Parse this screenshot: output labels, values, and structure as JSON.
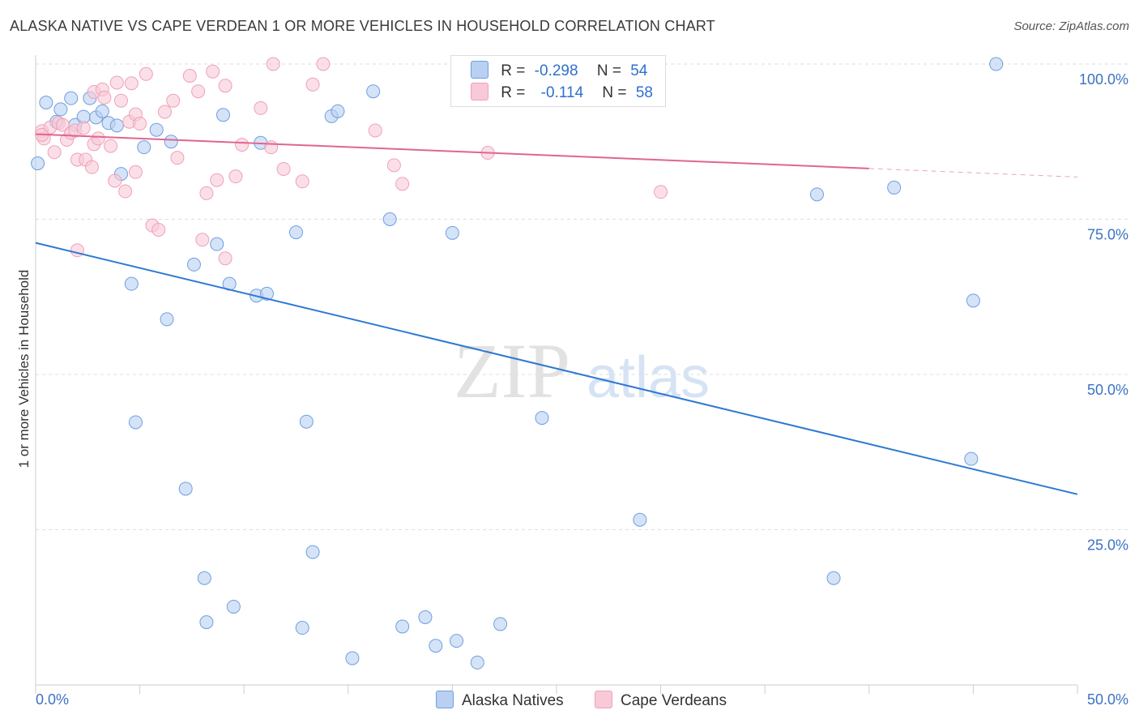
{
  "title": "ALASKA NATIVE VS CAPE VERDEAN 1 OR MORE VEHICLES IN HOUSEHOLD CORRELATION CHART",
  "source": "Source: ZipAtlas.com",
  "watermark": {
    "zip": "ZIP",
    "atlas": "atlas"
  },
  "legend": {
    "rows": [
      {
        "r_label": "R =",
        "r_value": "-0.298",
        "n_label": "N =",
        "n_value": "54"
      },
      {
        "r_label": "R =",
        "r_value": "-0.114",
        "n_label": "N =",
        "n_value": "58"
      }
    ]
  },
  "chart_data": {
    "type": "scatter",
    "title": "ALASKA NATIVE VS CAPE VERDEAN 1 OR MORE VEHICLES IN HOUSEHOLD CORRELATION CHART",
    "xlabel": "",
    "ylabel": "1 or more Vehicles in Household",
    "xlim": [
      0,
      50
    ],
    "ylim": [
      0,
      100
    ],
    "x_tick_labels": [
      {
        "value": 0,
        "label": "0.0%"
      },
      {
        "value": 50,
        "label": "50.0%"
      }
    ],
    "y_tick_labels": [
      {
        "value": 100,
        "label": "100.0%"
      },
      {
        "value": 75,
        "label": "75.0%"
      },
      {
        "value": 50,
        "label": "50.0%"
      },
      {
        "value": 25,
        "label": "25.0%"
      }
    ],
    "series": [
      {
        "name": "Alaska Natives",
        "color": "#6f9fe0",
        "fill": "#b9d0f2",
        "line_color": "#2f78d4",
        "trend": {
          "x": [
            0,
            50
          ],
          "y": [
            71.2,
            30.7
          ],
          "dashed_from": null
        },
        "points": [
          [
            0.5,
            93.8
          ],
          [
            1.2,
            92.7
          ],
          [
            1.7,
            94.5
          ],
          [
            1.0,
            90.7
          ],
          [
            1.9,
            90.2
          ],
          [
            2.3,
            91.5
          ],
          [
            2.6,
            94.5
          ],
          [
            2.9,
            91.4
          ],
          [
            3.2,
            92.4
          ],
          [
            3.5,
            90.5
          ],
          [
            3.9,
            90.1
          ],
          [
            4.1,
            82.3
          ],
          [
            5.2,
            86.6
          ],
          [
            5.8,
            89.4
          ],
          [
            6.5,
            87.5
          ],
          [
            9.0,
            91.8
          ],
          [
            10.8,
            87.3
          ],
          [
            14.2,
            91.6
          ],
          [
            14.5,
            92.4
          ],
          [
            16.2,
            95.6
          ],
          [
            12.5,
            72.9
          ],
          [
            17.0,
            75.0
          ],
          [
            20.0,
            72.8
          ],
          [
            8.7,
            71.0
          ],
          [
            7.6,
            67.7
          ],
          [
            9.3,
            64.6
          ],
          [
            10.6,
            62.7
          ],
          [
            11.1,
            63.0
          ],
          [
            4.6,
            64.6
          ],
          [
            6.3,
            58.9
          ],
          [
            4.8,
            42.3
          ],
          [
            13.0,
            42.4
          ],
          [
            24.3,
            43.0
          ],
          [
            7.2,
            31.6
          ],
          [
            29.0,
            26.6
          ],
          [
            13.3,
            21.4
          ],
          [
            8.1,
            17.2
          ],
          [
            38.3,
            17.2
          ],
          [
            8.2,
            10.1
          ],
          [
            9.5,
            12.6
          ],
          [
            12.8,
            9.2
          ],
          [
            17.6,
            9.4
          ],
          [
            18.7,
            10.9
          ],
          [
            22.3,
            9.8
          ],
          [
            19.2,
            6.3
          ],
          [
            20.2,
            7.1
          ],
          [
            21.2,
            3.6
          ],
          [
            15.2,
            4.3
          ],
          [
            37.5,
            79.0
          ],
          [
            41.2,
            80.1
          ],
          [
            44.9,
            36.4
          ],
          [
            45.0,
            61.9
          ],
          [
            46.1,
            100.0
          ],
          [
            0.1,
            84.0
          ]
        ]
      },
      {
        "name": "Cape Verdeans",
        "color": "#f0a0ba",
        "fill": "#f8c9d7",
        "line_color": "#e0668f",
        "trend": {
          "x": [
            0,
            50
          ],
          "y": [
            88.7,
            81.8
          ],
          "dashed_from": 40
        },
        "points": [
          [
            0.3,
            89.2
          ],
          [
            0.4,
            88.0
          ],
          [
            0.7,
            89.8
          ],
          [
            0.9,
            85.8
          ],
          [
            1.1,
            90.5
          ],
          [
            1.3,
            90.2
          ],
          [
            1.5,
            87.8
          ],
          [
            1.7,
            88.9
          ],
          [
            1.9,
            89.3
          ],
          [
            2.0,
            84.6
          ],
          [
            2.3,
            89.7
          ],
          [
            2.4,
            84.6
          ],
          [
            2.7,
            83.4
          ],
          [
            2.8,
            95.5
          ],
          [
            2.8,
            87.1
          ],
          [
            3.2,
            95.9
          ],
          [
            3.3,
            94.6
          ],
          [
            3.6,
            86.8
          ],
          [
            3.8,
            81.2
          ],
          [
            3.9,
            97.0
          ],
          [
            4.1,
            94.1
          ],
          [
            4.3,
            79.5
          ],
          [
            4.5,
            90.7
          ],
          [
            4.6,
            96.9
          ],
          [
            4.8,
            91.9
          ],
          [
            5.0,
            90.4
          ],
          [
            5.3,
            98.4
          ],
          [
            5.6,
            74.0
          ],
          [
            5.9,
            73.3
          ],
          [
            6.2,
            92.3
          ],
          [
            6.6,
            94.1
          ],
          [
            7.4,
            98.1
          ],
          [
            7.8,
            95.6
          ],
          [
            8.0,
            71.7
          ],
          [
            8.2,
            79.2
          ],
          [
            8.5,
            98.8
          ],
          [
            8.7,
            81.3
          ],
          [
            9.1,
            96.5
          ],
          [
            9.1,
            68.7
          ],
          [
            9.6,
            81.9
          ],
          [
            9.9,
            87.0
          ],
          [
            10.8,
            92.9
          ],
          [
            11.3,
            86.6
          ],
          [
            11.4,
            100.0
          ],
          [
            11.9,
            83.1
          ],
          [
            12.8,
            81.1
          ],
          [
            13.3,
            96.7
          ],
          [
            13.8,
            100.0
          ],
          [
            16.3,
            89.3
          ],
          [
            17.2,
            83.7
          ],
          [
            17.6,
            80.7
          ],
          [
            21.7,
            85.7
          ],
          [
            30.0,
            79.4
          ],
          [
            2.0,
            70.0
          ],
          [
            0.3,
            88.6
          ],
          [
            4.8,
            82.6
          ],
          [
            3.0,
            88.0
          ],
          [
            6.8,
            84.9
          ]
        ]
      }
    ]
  },
  "bottom_legend": [
    {
      "label": "Alaska Natives",
      "fill": "#b9d0f2",
      "border": "#6f9fe0"
    },
    {
      "label": "Cape Verdeans",
      "fill": "#f8c9d7",
      "border": "#f0a0ba"
    }
  ]
}
